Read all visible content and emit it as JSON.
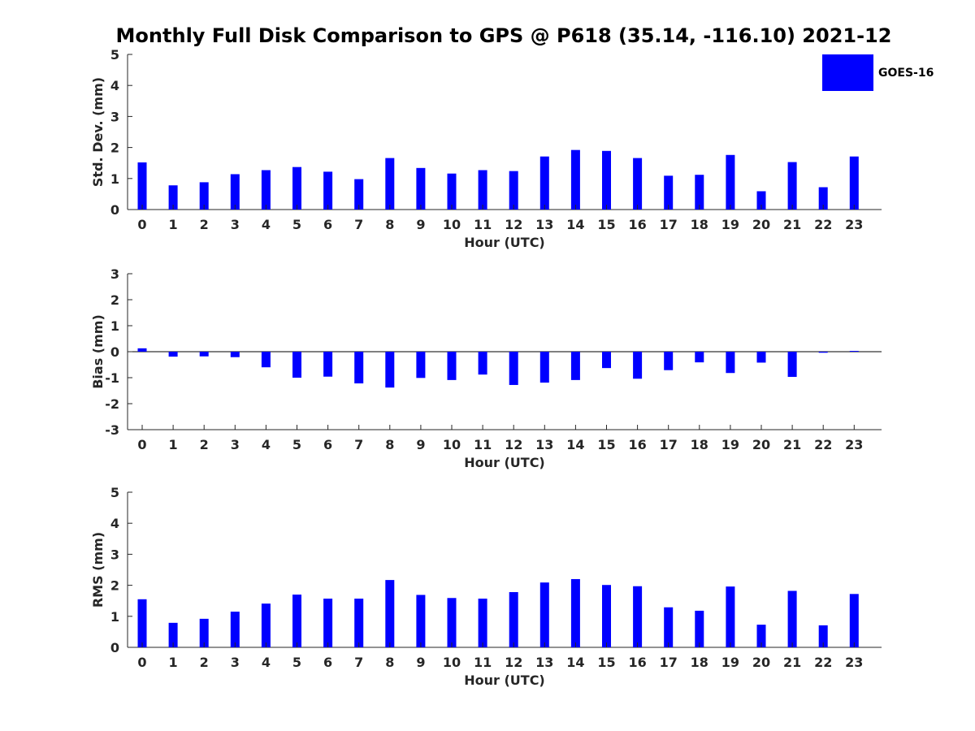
{
  "title": "Monthly Full Disk Comparison to GPS @ P618 (35.14, -116.10) 2021-12",
  "colors": {
    "bar": "#0000ff",
    "axis": "#262626"
  },
  "legend": {
    "label": "GOES-16",
    "placement": "top-right"
  },
  "chart_data": [
    {
      "type": "bar",
      "title": "",
      "xlabel": "Hour (UTC)",
      "ylabel": "Std. Dev. (mm)",
      "ylim": [
        0,
        5
      ],
      "yticks": [
        0,
        1,
        2,
        3,
        4,
        5
      ],
      "categories": [
        "0",
        "1",
        "2",
        "3",
        "4",
        "5",
        "6",
        "7",
        "8",
        "9",
        "10",
        "11",
        "12",
        "13",
        "14",
        "15",
        "16",
        "17",
        "18",
        "19",
        "20",
        "21",
        "22",
        "23"
      ],
      "series": [
        {
          "name": "GOES-16",
          "values": [
            1.52,
            0.78,
            0.88,
            1.14,
            1.27,
            1.37,
            1.22,
            0.98,
            1.66,
            1.34,
            1.16,
            1.27,
            1.24,
            1.71,
            1.92,
            1.89,
            1.66,
            1.09,
            1.12,
            1.76,
            0.59,
            1.53,
            0.72,
            1.71
          ]
        }
      ]
    },
    {
      "type": "bar",
      "title": "",
      "xlabel": "Hour (UTC)",
      "ylabel": "Bias (mm)",
      "ylim": [
        -3,
        3
      ],
      "yticks": [
        -3,
        -2,
        -1,
        0,
        1,
        2,
        3
      ],
      "categories": [
        "0",
        "1",
        "2",
        "3",
        "4",
        "5",
        "6",
        "7",
        "8",
        "9",
        "10",
        "11",
        "12",
        "13",
        "14",
        "15",
        "16",
        "17",
        "18",
        "19",
        "20",
        "21",
        "22",
        "23"
      ],
      "series": [
        {
          "name": "GOES-16",
          "values": [
            0.13,
            -0.19,
            -0.18,
            -0.21,
            -0.6,
            -1.0,
            -0.96,
            -1.22,
            -1.38,
            -1.01,
            -1.09,
            -0.88,
            -1.28,
            -1.19,
            -1.09,
            -0.63,
            -1.04,
            -0.71,
            -0.41,
            -0.82,
            -0.42,
            -0.97,
            -0.04,
            0.03
          ]
        }
      ]
    },
    {
      "type": "bar",
      "title": "",
      "xlabel": "Hour (UTC)",
      "ylabel": "RMS (mm)",
      "ylim": [
        0,
        5
      ],
      "yticks": [
        0,
        1,
        2,
        3,
        4,
        5
      ],
      "categories": [
        "0",
        "1",
        "2",
        "3",
        "4",
        "5",
        "6",
        "7",
        "8",
        "9",
        "10",
        "11",
        "12",
        "13",
        "14",
        "15",
        "16",
        "17",
        "18",
        "19",
        "20",
        "21",
        "22",
        "23"
      ],
      "series": [
        {
          "name": "GOES-16",
          "values": [
            1.55,
            0.79,
            0.92,
            1.15,
            1.41,
            1.7,
            1.57,
            1.57,
            2.17,
            1.69,
            1.59,
            1.57,
            1.78,
            2.09,
            2.2,
            2.01,
            1.97,
            1.29,
            1.18,
            1.96,
            0.73,
            1.82,
            0.71,
            1.72
          ]
        }
      ]
    }
  ]
}
